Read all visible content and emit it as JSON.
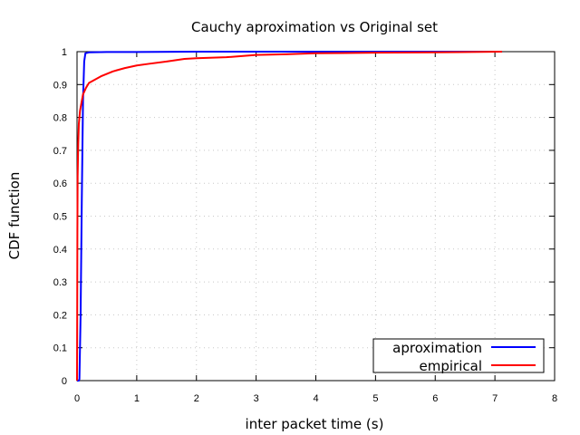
{
  "chart_data": {
    "type": "line",
    "title": "Cauchy aproximation vs Original set",
    "xlabel": "inter packet time (s)",
    "ylabel": "CDF function",
    "xlim": [
      0,
      8
    ],
    "ylim": [
      0,
      1
    ],
    "xticks": [
      "0",
      "1",
      "2",
      "3",
      "4",
      "5",
      "6",
      "7",
      "8"
    ],
    "yticks": [
      "0",
      "0.1",
      "0.2",
      "0.3",
      "0.4",
      "0.5",
      "0.6",
      "0.7",
      "0.8",
      "0.9",
      "1"
    ],
    "grid": true,
    "legend_position": "bottom-right",
    "series": [
      {
        "name": "aproximation",
        "color": "#0000ff",
        "x": [
          0.0,
          0.03,
          0.04,
          0.06,
          0.08,
          0.1,
          0.12,
          0.14,
          0.2,
          0.5,
          1.0,
          2.0,
          4.0,
          6.0,
          7.12
        ],
        "y": [
          0.0,
          0.0,
          0.005,
          0.2,
          0.55,
          0.85,
          0.97,
          0.995,
          0.998,
          0.999,
          0.999,
          1.0,
          1.0,
          1.0,
          1.0
        ]
      },
      {
        "name": "empirical",
        "color": "#ff0000",
        "x": [
          0.0,
          0.003,
          0.006,
          0.01,
          0.02,
          0.03,
          0.05,
          0.08,
          0.1,
          0.15,
          0.2,
          0.3,
          0.4,
          0.6,
          0.8,
          1.0,
          1.2,
          1.5,
          1.8,
          2.0,
          2.5,
          3.0,
          3.5,
          4.0,
          5.0,
          6.0,
          7.12
        ],
        "y": [
          0.0,
          0.2,
          0.45,
          0.62,
          0.72,
          0.78,
          0.82,
          0.85,
          0.87,
          0.89,
          0.905,
          0.915,
          0.925,
          0.94,
          0.95,
          0.958,
          0.963,
          0.97,
          0.978,
          0.98,
          0.983,
          0.99,
          0.992,
          0.995,
          0.997,
          0.998,
          1.0
        ]
      }
    ]
  }
}
